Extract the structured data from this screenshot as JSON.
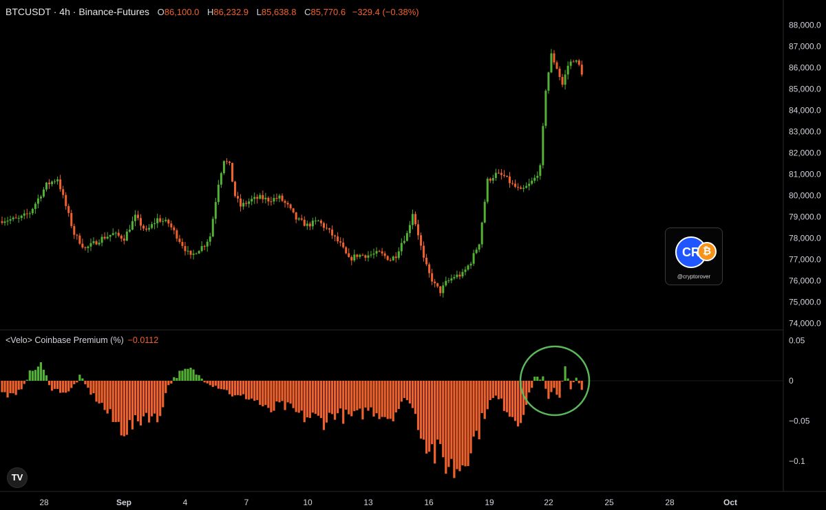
{
  "header": {
    "symbol": "BTCUSDT · 4h · Binance-Futures",
    "open_label": "O",
    "open": "86,100.0",
    "high_label": "H",
    "high": "86,232.9",
    "low_label": "L",
    "low": "85,638.8",
    "close_label": "C",
    "close": "85,770.6",
    "change": "−329.4 (−0.38%)"
  },
  "indicator": {
    "name": "<Velo> Coinbase Premium (%)",
    "value": "−0.0112"
  },
  "watermark": {
    "handle": "@cryptorover",
    "logo_letters": "CR",
    "badge": "₿"
  },
  "tradingview_logo": "TV",
  "colors": {
    "up": "#53b135",
    "down": "#f0622d",
    "background": "#000000",
    "text": "#d1d4dc",
    "highlight_circle": "#5cb85c"
  },
  "chart_data": [
    {
      "type": "candlestick",
      "title": "BTCUSDT · 4h · Binance-Futures",
      "x_tick_labels": [
        "28",
        "Sep",
        "4",
        "7",
        "10",
        "13",
        "16",
        "19",
        "22",
        "25",
        "28",
        "Oct"
      ],
      "y_tick_labels": [
        "74,000.0",
        "75,000.0",
        "76,000.0",
        "77,000.0",
        "78,000.0",
        "79,000.0",
        "80,000.0",
        "81,000.0",
        "82,000.0",
        "83,000.0",
        "84,000.0",
        "85,000.0",
        "86,000.0",
        "87,000.0",
        "88,000.0"
      ],
      "ylim": [
        73700,
        88300
      ],
      "close_path": [
        [
          0,
          78850
        ],
        [
          6,
          78900
        ],
        [
          10,
          79200
        ],
        [
          16,
          80500
        ],
        [
          20,
          80800
        ],
        [
          26,
          78200
        ],
        [
          30,
          77500
        ],
        [
          36,
          78000
        ],
        [
          40,
          78200
        ],
        [
          44,
          78000
        ],
        [
          48,
          79000
        ],
        [
          52,
          78300
        ],
        [
          56,
          78900
        ],
        [
          60,
          78700
        ],
        [
          64,
          77900
        ],
        [
          68,
          77100
        ],
        [
          70,
          77400
        ],
        [
          73,
          77700
        ],
        [
          75,
          78100
        ],
        [
          78,
          80600
        ],
        [
          80,
          81700
        ],
        [
          82,
          81400
        ],
        [
          84,
          80000
        ],
        [
          86,
          79500
        ],
        [
          90,
          79800
        ],
        [
          93,
          79900
        ],
        [
          96,
          79800
        ],
        [
          100,
          79900
        ],
        [
          103,
          79500
        ],
        [
          106,
          78900
        ],
        [
          110,
          78600
        ],
        [
          114,
          78800
        ],
        [
          118,
          78300
        ],
        [
          122,
          77700
        ],
        [
          125,
          77000
        ],
        [
          128,
          77200
        ],
        [
          132,
          77200
        ],
        [
          136,
          77300
        ],
        [
          140,
          77000
        ],
        [
          142,
          77200
        ],
        [
          144,
          77800
        ],
        [
          146,
          78200
        ],
        [
          148,
          79200
        ],
        [
          150,
          78200
        ],
        [
          152,
          77000
        ],
        [
          154,
          76300
        ],
        [
          156,
          75800
        ],
        [
          158,
          75500
        ],
        [
          160,
          75900
        ],
        [
          163,
          76200
        ],
        [
          166,
          76300
        ],
        [
          169,
          76900
        ],
        [
          172,
          77800
        ],
        [
          175,
          80700
        ],
        [
          178,
          81000
        ],
        [
          181,
          80900
        ],
        [
          184,
          80500
        ],
        [
          187,
          80200
        ],
        [
          190,
          80500
        ],
        [
          192,
          80800
        ],
        [
          194,
          81300
        ],
        [
          196,
          85000
        ],
        [
          198,
          86600
        ],
        [
          200,
          86000
        ],
        [
          202,
          85200
        ],
        [
          204,
          86100
        ],
        [
          206,
          86400
        ],
        [
          208,
          86100
        ],
        [
          209,
          85770
        ]
      ]
    },
    {
      "type": "bar",
      "title": "<Velo> Coinbase Premium (%)",
      "y_tick_labels": [
        "0.05",
        "0",
        "−0.05",
        "−0.1"
      ],
      "ylim": [
        -0.14,
        0.06
      ],
      "anchors": [
        [
          0,
          -0.015
        ],
        [
          5,
          -0.02
        ],
        [
          10,
          0.01
        ],
        [
          14,
          0.02
        ],
        [
          18,
          -0.01
        ],
        [
          24,
          -0.015
        ],
        [
          28,
          0.005
        ],
        [
          32,
          -0.015
        ],
        [
          36,
          -0.03
        ],
        [
          40,
          -0.05
        ],
        [
          44,
          -0.06
        ],
        [
          48,
          -0.055
        ],
        [
          52,
          -0.04
        ],
        [
          56,
          -0.05
        ],
        [
          60,
          -0.005
        ],
        [
          64,
          0.01
        ],
        [
          68,
          0.015
        ],
        [
          72,
          0.003
        ],
        [
          76,
          -0.005
        ],
        [
          80,
          -0.01
        ],
        [
          84,
          -0.02
        ],
        [
          88,
          -0.02
        ],
        [
          92,
          -0.025
        ],
        [
          96,
          -0.04
        ],
        [
          100,
          -0.03
        ],
        [
          104,
          -0.035
        ],
        [
          108,
          -0.045
        ],
        [
          112,
          -0.045
        ],
        [
          116,
          -0.05
        ],
        [
          120,
          -0.04
        ],
        [
          124,
          -0.045
        ],
        [
          128,
          -0.045
        ],
        [
          132,
          -0.035
        ],
        [
          136,
          -0.04
        ],
        [
          140,
          -0.045
        ],
        [
          144,
          -0.03
        ],
        [
          146,
          -0.02
        ],
        [
          148,
          -0.035
        ],
        [
          152,
          -0.07
        ],
        [
          156,
          -0.09
        ],
        [
          160,
          -0.1
        ],
        [
          163,
          -0.11
        ],
        [
          166,
          -0.1
        ],
        [
          169,
          -0.08
        ],
        [
          172,
          -0.06
        ],
        [
          175,
          -0.03
        ],
        [
          178,
          -0.02
        ],
        [
          182,
          -0.035
        ],
        [
          186,
          -0.05
        ],
        [
          189,
          -0.03
        ],
        [
          192,
          0.005
        ],
        [
          195,
          0.003
        ],
        [
          197,
          -0.025
        ],
        [
          199,
          -0.01
        ],
        [
          201,
          -0.02
        ],
        [
          203,
          0.02
        ],
        [
          205,
          -0.01
        ],
        [
          207,
          0.003
        ],
        [
          209,
          -0.0112
        ]
      ],
      "latest_value": -0.0112
    }
  ]
}
